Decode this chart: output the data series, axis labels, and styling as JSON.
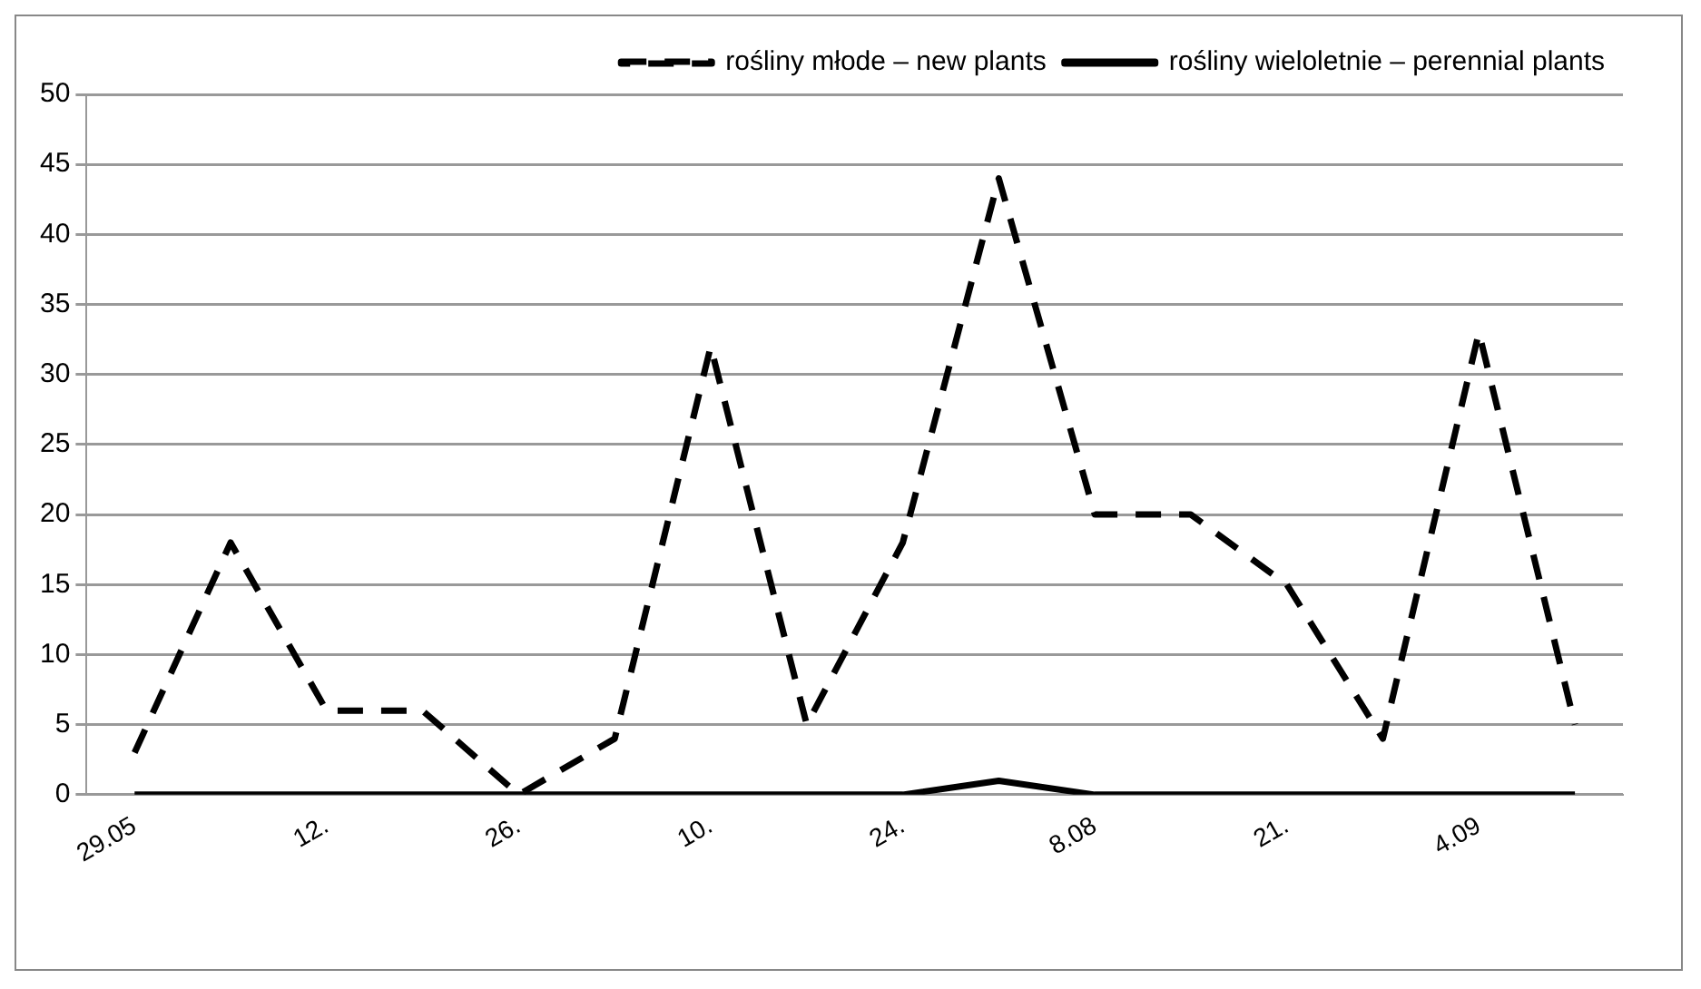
{
  "chart_data": {
    "type": "line",
    "categories": [
      "29.05",
      null,
      "12.",
      null,
      "26.",
      null,
      "10.",
      null,
      "24.",
      null,
      "8.08",
      null,
      "21.",
      null,
      "4.09",
      null
    ],
    "series": [
      {
        "name": "rośliny młode – new plants",
        "color": "#000000",
        "line_style": "dashed",
        "values": [
          3,
          18,
          6,
          6,
          0,
          4,
          32,
          5,
          18,
          44,
          20,
          20,
          15,
          4,
          33,
          5
        ]
      },
      {
        "name": "rośliny wieloletnie – perennial plants",
        "color": "#000000",
        "line_style": "solid",
        "values": [
          0,
          0,
          0,
          0,
          0,
          0,
          0,
          0,
          0,
          1,
          0,
          0,
          0,
          0,
          0,
          0
        ]
      }
    ],
    "ylim": [
      0,
      50
    ],
    "yticks": [
      0,
      5,
      10,
      15,
      20,
      25,
      30,
      35,
      40,
      45,
      50
    ],
    "grid": "y",
    "legend": "top",
    "marker": "none"
  }
}
